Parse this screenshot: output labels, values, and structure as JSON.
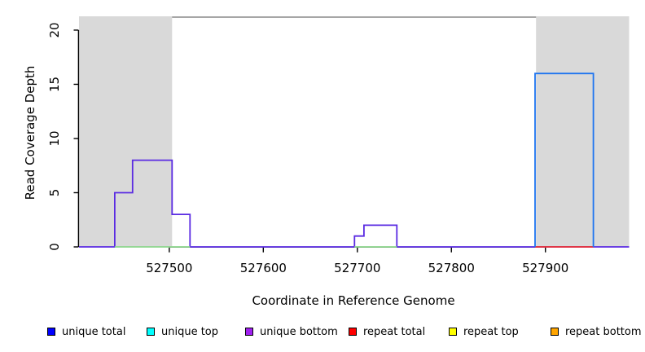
{
  "chart_data": {
    "type": "line",
    "subtype": "step-coverage",
    "title": "",
    "xlabel": "Coordinate in Reference Genome",
    "ylabel": "Read Coverage Depth",
    "xlim": [
      527404,
      527989
    ],
    "ylim": [
      0,
      21.2
    ],
    "xticks": [
      527500,
      527600,
      527700,
      527800,
      527900
    ],
    "yticks": [
      0,
      5,
      10,
      15,
      20
    ],
    "grid": false,
    "background_color": "#ffffff",
    "shaded_region_color": "#d9d9d9",
    "frame_top_color": "#888888",
    "axis_color": "#000000",
    "shaded_regions": [
      {
        "x0": 527404,
        "x1": 527503
      },
      {
        "x0": 527890,
        "x1": 527989
      }
    ],
    "traces": [
      {
        "name": "unique-bottom-step-trace",
        "color": "#5a2be2",
        "points": [
          [
            527404,
            0
          ],
          [
            527442,
            0
          ],
          [
            527442,
            5
          ],
          [
            527461,
            5
          ],
          [
            527461,
            8
          ],
          [
            527503,
            8
          ],
          [
            527503,
            3
          ],
          [
            527522,
            3
          ],
          [
            527522,
            0
          ],
          [
            527697,
            0
          ],
          [
            527697,
            1
          ],
          [
            527707,
            1
          ],
          [
            527707,
            2
          ],
          [
            527742,
            2
          ],
          [
            527742,
            0
          ],
          [
            527989,
            0
          ]
        ]
      },
      {
        "name": "green-zero-segment-left",
        "color": "#8cd68c",
        "points": [
          [
            527442,
            0
          ],
          [
            527522,
            0
          ]
        ]
      },
      {
        "name": "green-zero-segment-middle",
        "color": "#8cd68c",
        "points": [
          [
            527697,
            0
          ],
          [
            527742,
            0
          ]
        ]
      },
      {
        "name": "repeat-total-zero-segment",
        "color": "#ee3333",
        "points": [
          [
            527889,
            0
          ],
          [
            527951,
            0
          ]
        ]
      },
      {
        "name": "unique-total-peak-box",
        "color": "#1d74f0",
        "points": [
          [
            527889,
            0
          ],
          [
            527889,
            16
          ],
          [
            527951,
            16
          ],
          [
            527951,
            0
          ]
        ]
      }
    ]
  },
  "legend": {
    "items": [
      {
        "label": "unique total",
        "color": "#0000ff"
      },
      {
        "label": "unique top",
        "color": "#00ffff"
      },
      {
        "label": "unique bottom",
        "color": "#a020f0"
      },
      {
        "label": "repeat total",
        "color": "#ff0000"
      },
      {
        "label": "repeat top",
        "color": "#ffff00"
      },
      {
        "label": "repeat bottom",
        "color": "#ffa500"
      }
    ]
  }
}
